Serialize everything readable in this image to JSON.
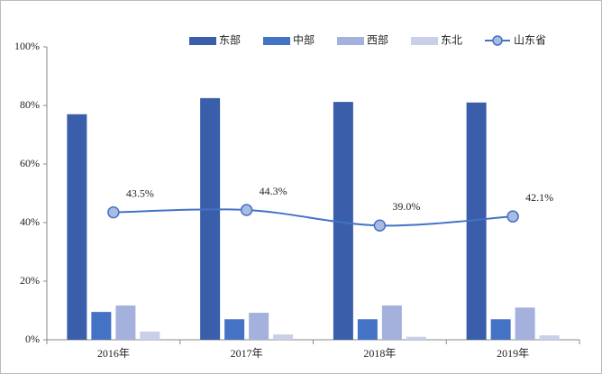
{
  "chart_data": {
    "type": "bar_line",
    "categories": [
      "2016年",
      "2017年",
      "2018年",
      "2019年"
    ],
    "series": [
      {
        "name": "东部",
        "color": "#3a5ea9",
        "type": "bar",
        "values": [
          77,
          82.5,
          81.2,
          81
        ]
      },
      {
        "name": "中部",
        "color": "#4472c4",
        "type": "bar",
        "values": [
          9.5,
          7,
          7,
          7
        ]
      },
      {
        "name": "西部",
        "color": "#a4b1dc",
        "type": "bar",
        "values": [
          11.7,
          9.2,
          11.7,
          11
        ]
      },
      {
        "name": "东北",
        "color": "#c7cfe9",
        "type": "bar",
        "values": [
          2.8,
          1.8,
          1,
          1.5
        ]
      },
      {
        "name": "山东省",
        "color": "#4472c4",
        "type": "line",
        "values": [
          43.5,
          44.3,
          39.0,
          42.1
        ],
        "value_labels": [
          "43.5%",
          "44.3%",
          "39.0%",
          "42.1%"
        ]
      }
    ],
    "ylim": [
      0,
      100
    ],
    "yticks": [
      {
        "value": 0,
        "label": "0%"
      },
      {
        "value": 20,
        "label": "20%"
      },
      {
        "value": 40,
        "label": "40%"
      },
      {
        "value": 60,
        "label": "60%"
      },
      {
        "value": 80,
        "label": "80%"
      },
      {
        "value": 100,
        "label": "100%"
      }
    ],
    "legend": "top"
  }
}
